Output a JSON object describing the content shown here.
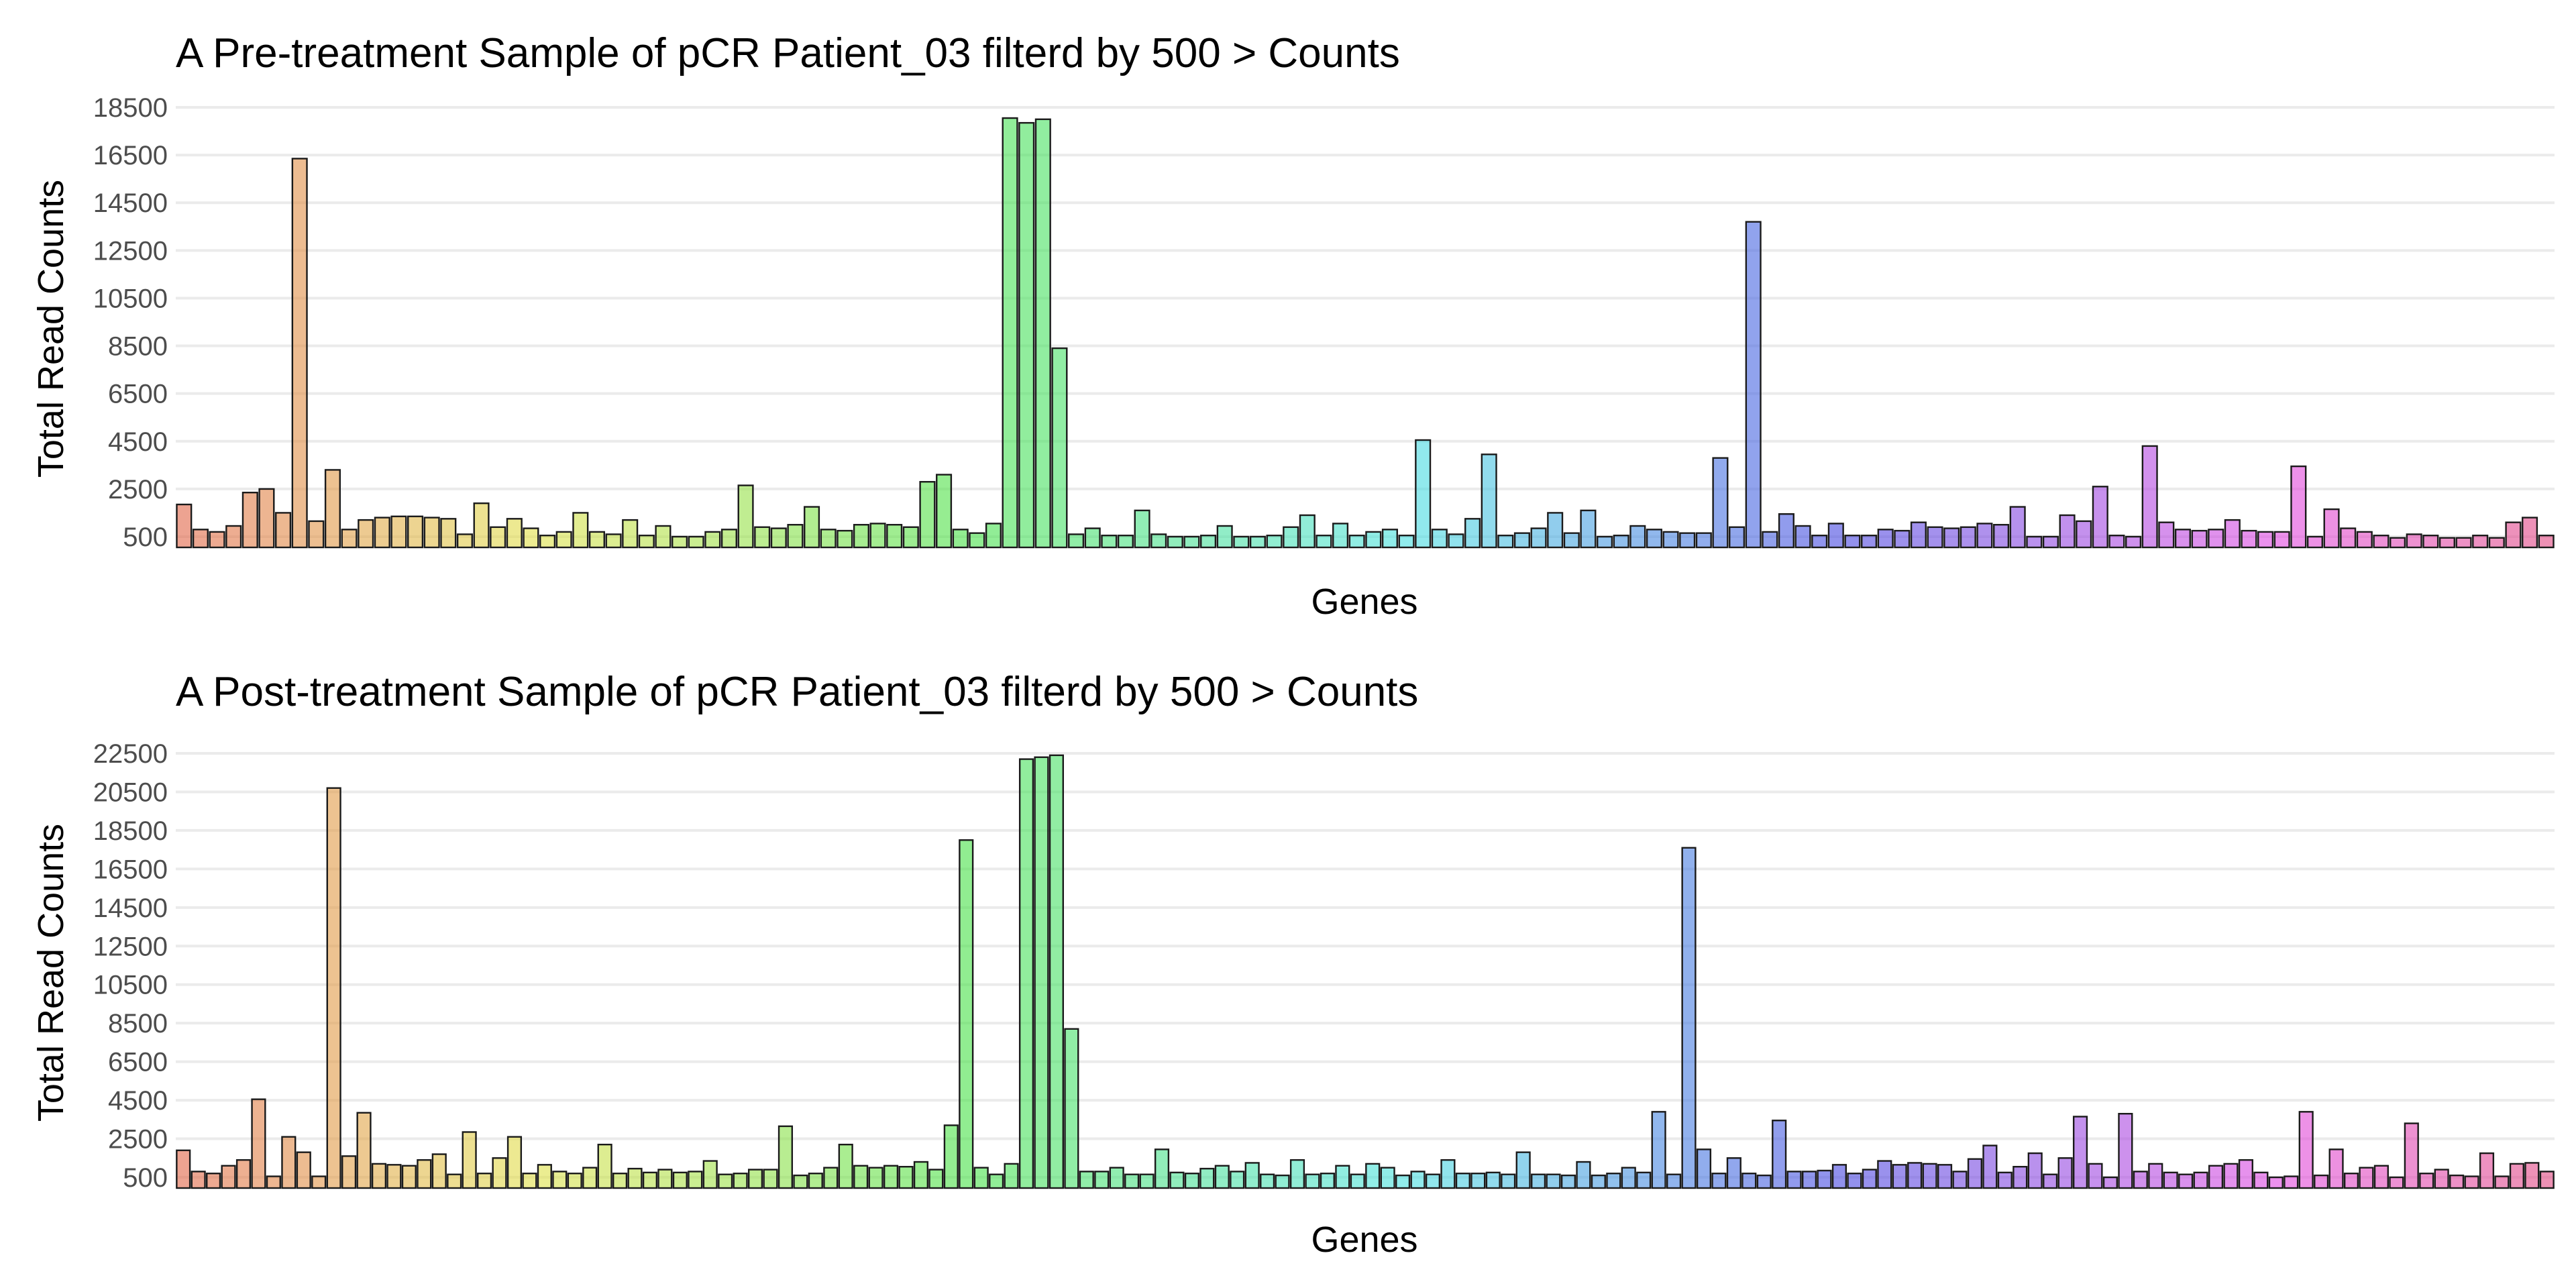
{
  "chart_data": [
    {
      "type": "bar",
      "title": "A Pre-treatment Sample of pCR Patient_03 filterd by 500 > Counts",
      "xlabel": "Genes",
      "ylabel": "Total Read Counts",
      "ylim": [
        0,
        18500
      ],
      "yticks": [
        500,
        2500,
        4500,
        6500,
        8500,
        10500,
        12500,
        14500,
        16500,
        18500
      ],
      "ytick_labels": [
        "500",
        "2500",
        "4500",
        "6500",
        "8500",
        "10500",
        "12500",
        "14500",
        "16500",
        "18500"
      ],
      "x_tick_labels": "none",
      "grid": "horizontal",
      "legend": "none",
      "color_scale": "hue gradient (red to orange to green to cyan to blue to purple to pink)",
      "values": [
        1850,
        800,
        700,
        950,
        2350,
        2500,
        1500,
        16350,
        1150,
        3300,
        800,
        1200,
        1300,
        1350,
        1350,
        1300,
        1250,
        600,
        1900,
        900,
        1250,
        850,
        550,
        700,
        1500,
        700,
        600,
        1200,
        550,
        950,
        500,
        500,
        700,
        800,
        2650,
        900,
        850,
        1000,
        1750,
        800,
        750,
        1000,
        1050,
        1000,
        900,
        2800,
        3100,
        800,
        650,
        1050,
        18050,
        17850,
        18000,
        8400,
        600,
        850,
        550,
        550,
        1600,
        600,
        500,
        500,
        550,
        950,
        500,
        500,
        550,
        900,
        1400,
        550,
        1050,
        550,
        700,
        800,
        550,
        4550,
        800,
        600,
        1250,
        3950,
        550,
        650,
        850,
        1500,
        650,
        1600,
        500,
        550,
        950,
        800,
        700,
        650,
        650,
        3800,
        900,
        13700,
        700,
        1450,
        950,
        550,
        1050,
        550,
        550,
        800,
        750,
        1100,
        900,
        850,
        900,
        1050,
        1000,
        1750,
        500,
        500,
        1400,
        1150,
        2600,
        550,
        500,
        4300,
        1100,
        800,
        750,
        800,
        1200,
        750,
        700,
        700,
        3450,
        500,
        1650,
        850,
        700,
        550,
        450,
        600,
        550,
        450,
        450,
        550,
        450,
        1100,
        1300,
        550
      ]
    },
    {
      "type": "bar",
      "title": "A Post-treatment Sample of pCR Patient_03 filterd by 500 > Counts",
      "xlabel": "Genes",
      "ylabel": "Total Read Counts",
      "ylim": [
        0,
        22500
      ],
      "yticks": [
        500,
        2500,
        4500,
        6500,
        8500,
        10500,
        12500,
        14500,
        16500,
        18500,
        20500,
        22500
      ],
      "ytick_labels": [
        "500",
        "2500",
        "4500",
        "6500",
        "8500",
        "10500",
        "12500",
        "14500",
        "16500",
        "18500",
        "20500",
        "22500"
      ],
      "x_tick_labels": "none",
      "grid": "horizontal",
      "legend": "none",
      "color_scale": "hue gradient (red to orange to green to cyan to blue to purple to pink)",
      "values": [
        1900,
        800,
        700,
        1100,
        1400,
        4550,
        550,
        2600,
        1800,
        550,
        20700,
        1600,
        3850,
        1200,
        1150,
        1100,
        1400,
        1700,
        650,
        2850,
        700,
        1500,
        2600,
        700,
        1150,
        800,
        700,
        1000,
        2200,
        700,
        950,
        750,
        900,
        750,
        800,
        1350,
        650,
        700,
        900,
        900,
        3150,
        600,
        700,
        1000,
        2200,
        1100,
        1000,
        1100,
        1050,
        1300,
        900,
        3200,
        18000,
        1000,
        650,
        1200,
        22200,
        22300,
        22400,
        8200,
        800,
        800,
        1000,
        650,
        650,
        1950,
        750,
        700,
        950,
        1100,
        800,
        1250,
        650,
        600,
        1400,
        650,
        700,
        1100,
        650,
        1200,
        1000,
        600,
        800,
        650,
        1400,
        700,
        700,
        750,
        650,
        1800,
        650,
        650,
        600,
        1300,
        600,
        700,
        1000,
        750,
        3900,
        650,
        17600,
        1950,
        700,
        1500,
        700,
        600,
        3450,
        800,
        800,
        850,
        1150,
        700,
        900,
        1350,
        1150,
        1250,
        1200,
        1150,
        800,
        1450,
        2150,
        750,
        1050,
        1750,
        650,
        1500,
        3650,
        1200,
        500,
        3800,
        800,
        1200,
        750,
        650,
        750,
        1100,
        1200,
        1400,
        750,
        500,
        550,
        3900,
        600,
        1950,
        700,
        1000,
        1100,
        500,
        3300,
        700,
        900,
        600,
        550,
        1750,
        550,
        1200,
        1250,
        800
      ]
    }
  ]
}
